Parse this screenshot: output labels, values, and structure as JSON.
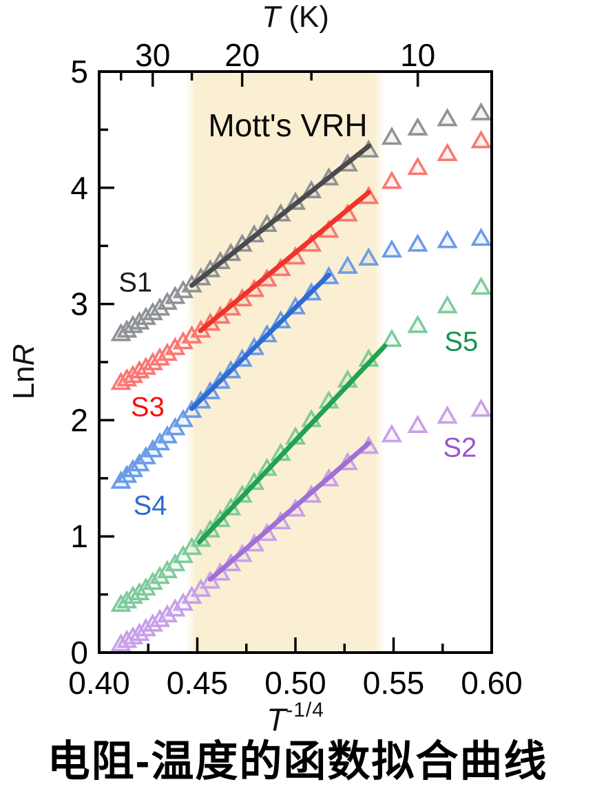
{
  "top_title": {
    "symbol": "T",
    "rest": " (K)"
  },
  "top_axis": {
    "major": [
      {
        "value": 30,
        "label": "30"
      },
      {
        "value": 20,
        "label": "20"
      },
      {
        "value": 10,
        "label": "10"
      }
    ],
    "minor_T": [
      35,
      25,
      15
    ]
  },
  "y_axis": {
    "label_prefix": "Ln",
    "label_symbol": "R",
    "range": [
      0,
      5
    ],
    "major_ticks": [
      {
        "value": 0,
        "label": "0"
      },
      {
        "value": 1,
        "label": "1"
      },
      {
        "value": 2,
        "label": "2"
      },
      {
        "value": 3,
        "label": "3"
      },
      {
        "value": 4,
        "label": "4"
      },
      {
        "value": 5,
        "label": "5"
      }
    ],
    "minor_ticks": [
      0.5,
      1.5,
      2.5,
      3.5,
      4.5
    ]
  },
  "x_axis": {
    "label_symbol": "T",
    "label_sup": "-1/4",
    "range": [
      0.4,
      0.6
    ],
    "tick_labels": [
      {
        "value": 0.4,
        "label": "0.40"
      },
      {
        "value": 0.45,
        "label": "0.45"
      },
      {
        "value": 0.5,
        "label": "0.50"
      },
      {
        "value": 0.55,
        "label": "0.55"
      },
      {
        "value": 0.6,
        "label": "0.60"
      }
    ],
    "major_tick_values": [
      0.45,
      0.5,
      0.55
    ],
    "minor_ticks": [
      0.425,
      0.475,
      0.525,
      0.575
    ]
  },
  "annotation": {
    "text": "Mott's VRH"
  },
  "band": {
    "x_from": 0.447,
    "x_to": 0.5425,
    "color": "#faefd2"
  },
  "caption": {
    "text": "电阻-温度的函数拟合曲线"
  },
  "chart_data": {
    "type": "scatter",
    "title": "Mott's VRH fitting",
    "xlabel": "T^(-1/4)",
    "ylabel": "LnR",
    "x_range": [
      0.4,
      0.6
    ],
    "y_range": [
      0,
      5
    ],
    "marker": "open-triangle-up",
    "temperatures_K": [
      35,
      34,
      33,
      32,
      31,
      30,
      29,
      28,
      27,
      26,
      25,
      24,
      23,
      22,
      21,
      20,
      19,
      18,
      17,
      16,
      15,
      14,
      13,
      12,
      11,
      10,
      9,
      8
    ],
    "x": [
      0.4111,
      0.4141,
      0.4172,
      0.4205,
      0.4238,
      0.4273,
      0.4309,
      0.4347,
      0.4387,
      0.4428,
      0.4472,
      0.4518,
      0.4566,
      0.4617,
      0.4671,
      0.4729,
      0.479,
      0.4855,
      0.4925,
      0.5,
      0.5081,
      0.517,
      0.5266,
      0.5373,
      0.5491,
      0.5623,
      0.5774,
      0.5946
    ],
    "series": [
      {
        "name": "S1",
        "marker_color": "#8f9296",
        "line_color": "#4b4b4e",
        "label_color": "#1a1a1a",
        "label_anchor": {
          "x": 0.4185,
          "y": 3.18
        },
        "values": [
          2.75,
          2.78,
          2.82,
          2.85,
          2.89,
          2.93,
          2.97,
          3.02,
          3.07,
          3.12,
          3.17,
          3.23,
          3.3,
          3.37,
          3.44,
          3.52,
          3.6,
          3.69,
          3.78,
          3.88,
          3.98,
          4.09,
          4.21,
          4.33,
          4.44,
          4.52,
          4.6,
          4.65
        ],
        "fit_line": {
          "x1": 0.4472,
          "y1": 3.16,
          "x2": 0.5375,
          "y2": 4.36
        }
      },
      {
        "name": "S3",
        "marker_color": "#fa7772",
        "line_color": "#ef342b",
        "label_color": "#fb0d07",
        "label_anchor": {
          "x": 0.4247,
          "y": 2.11
        },
        "values": [
          2.33,
          2.36,
          2.39,
          2.43,
          2.46,
          2.5,
          2.54,
          2.58,
          2.63,
          2.68,
          2.73,
          2.78,
          2.84,
          2.9,
          2.97,
          3.05,
          3.13,
          3.22,
          3.31,
          3.41,
          3.52,
          3.64,
          3.78,
          3.93,
          4.06,
          4.18,
          4.3,
          4.41
        ],
        "fit_line": {
          "x1": 0.4516,
          "y1": 2.77,
          "x2": 0.5373,
          "y2": 3.96
        }
      },
      {
        "name": "S4",
        "marker_color": "#6b9ce8",
        "line_color": "#2c6cd3",
        "label_color": "#2a6bd3",
        "label_anchor": {
          "x": 0.426,
          "y": 1.26
        },
        "values": [
          1.48,
          1.53,
          1.58,
          1.63,
          1.69,
          1.75,
          1.81,
          1.87,
          1.94,
          2.01,
          2.09,
          2.17,
          2.25,
          2.34,
          2.43,
          2.53,
          2.63,
          2.74,
          2.86,
          2.98,
          3.1,
          3.24,
          3.33,
          3.4,
          3.47,
          3.52,
          3.55,
          3.57
        ],
        "fit_line": {
          "x1": 0.4472,
          "y1": 2.1,
          "x2": 0.517,
          "y2": 3.25
        }
      },
      {
        "name": "S5",
        "marker_color": "#7ecb9b",
        "line_color": "#21a251",
        "label_color": "#13954d",
        "label_anchor": {
          "x": 0.5845,
          "y": 2.67
        },
        "values": [
          0.42,
          0.45,
          0.49,
          0.52,
          0.56,
          0.61,
          0.66,
          0.71,
          0.77,
          0.84,
          0.91,
          0.98,
          1.06,
          1.15,
          1.25,
          1.36,
          1.47,
          1.59,
          1.72,
          1.86,
          2.01,
          2.17,
          2.35,
          2.53,
          2.7,
          2.82,
          2.99,
          3.15
        ],
        "fit_line": {
          "x1": 0.451,
          "y1": 0.95,
          "x2": 0.5456,
          "y2": 2.64
        }
      },
      {
        "name": "S2",
        "marker_color": "#c7a0ea",
        "line_color": "#a16ed6",
        "label_color": "#9a55cc",
        "label_anchor": {
          "x": 0.5838,
          "y": 1.76
        },
        "values": [
          0.08,
          0.11,
          0.14,
          0.17,
          0.21,
          0.25,
          0.29,
          0.33,
          0.38,
          0.43,
          0.49,
          0.55,
          0.62,
          0.69,
          0.77,
          0.85,
          0.94,
          1.03,
          1.13,
          1.24,
          1.36,
          1.5,
          1.64,
          1.78,
          1.88,
          1.96,
          2.04,
          2.1
        ],
        "fit_line": {
          "x1": 0.4566,
          "y1": 0.63,
          "x2": 0.5373,
          "y2": 1.8
        }
      }
    ]
  }
}
